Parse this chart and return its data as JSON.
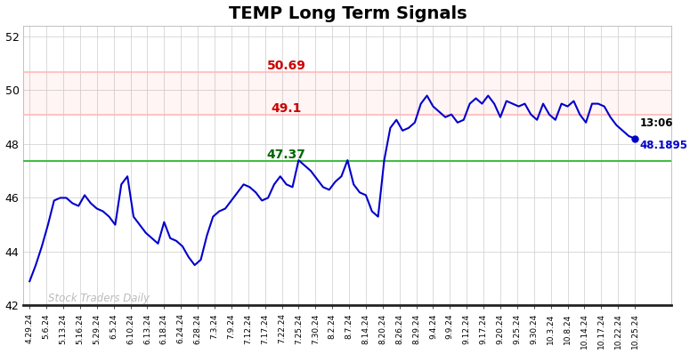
{
  "title": "TEMP Long Term Signals",
  "title_fontsize": 14,
  "title_fontweight": "bold",
  "background_color": "#ffffff",
  "line_color": "#0000cc",
  "line_width": 1.5,
  "hline_red1": 50.69,
  "hline_red2": 49.1,
  "hline_green": 47.37,
  "hline_red_color": "#ffbbbb",
  "hline_green_color": "#44bb44",
  "label_red1": "50.69",
  "label_red2": "49.1",
  "label_green": "47.37",
  "label_red_color": "#cc0000",
  "label_green_color": "#006600",
  "label_fontsize": 10,
  "time_label": "13:06",
  "price_label": "48.1895",
  "last_value": 48.1895,
  "last_dot_color": "#0000cc",
  "watermark": "Stock Traders Daily",
  "watermark_color": "#bbbbbb",
  "ylim": [
    42,
    52.4
  ],
  "yticks": [
    42,
    44,
    46,
    48,
    50,
    52
  ],
  "xlabels": [
    "4.29.24",
    "5.6.24",
    "5.13.24",
    "5.16.24",
    "5.29.24",
    "6.5.24",
    "6.10.24",
    "6.13.24",
    "6.18.24",
    "6.24.24",
    "6.28.24",
    "7.3.24",
    "7.9.24",
    "7.12.24",
    "7.17.24",
    "7.22.24",
    "7.25.24",
    "7.30.24",
    "8.2.24",
    "8.7.24",
    "8.14.24",
    "8.20.24",
    "8.26.24",
    "8.29.24",
    "9.4.24",
    "9.9.24",
    "9.12.24",
    "9.17.24",
    "9.20.24",
    "9.25.24",
    "9.30.24",
    "10.3.24",
    "10.8.24",
    "10.14.24",
    "10.17.24",
    "10.22.24",
    "10.25.24"
  ],
  "ydata": [
    42.9,
    43.5,
    44.2,
    45.0,
    45.9,
    46.0,
    46.0,
    45.8,
    45.7,
    46.1,
    45.8,
    45.6,
    45.5,
    45.3,
    45.0,
    46.5,
    46.8,
    45.3,
    45.0,
    44.7,
    44.5,
    44.3,
    45.1,
    44.5,
    44.4,
    44.2,
    43.8,
    43.5,
    43.7,
    44.6,
    45.3,
    45.5,
    45.6,
    45.9,
    46.2,
    46.5,
    46.4,
    46.2,
    45.9,
    46.0,
    46.5,
    46.8,
    46.5,
    46.4,
    47.4,
    47.2,
    47.0,
    46.7,
    46.4,
    46.3,
    46.6,
    46.8,
    47.4,
    46.5,
    46.2,
    46.1,
    45.5,
    45.3,
    47.4,
    48.6,
    48.9,
    48.5,
    48.6,
    48.8,
    49.5,
    49.8,
    49.4,
    49.2,
    49.0,
    49.1,
    48.8,
    48.9,
    49.5,
    49.7,
    49.5,
    49.8,
    49.5,
    49.0,
    49.6,
    49.5,
    49.4,
    49.5,
    49.1,
    48.9,
    49.5,
    49.1,
    48.9,
    49.5,
    49.4,
    49.6,
    49.1,
    48.8,
    49.5,
    49.5,
    49.4,
    49.0,
    48.7,
    48.5,
    48.3,
    48.2
  ]
}
